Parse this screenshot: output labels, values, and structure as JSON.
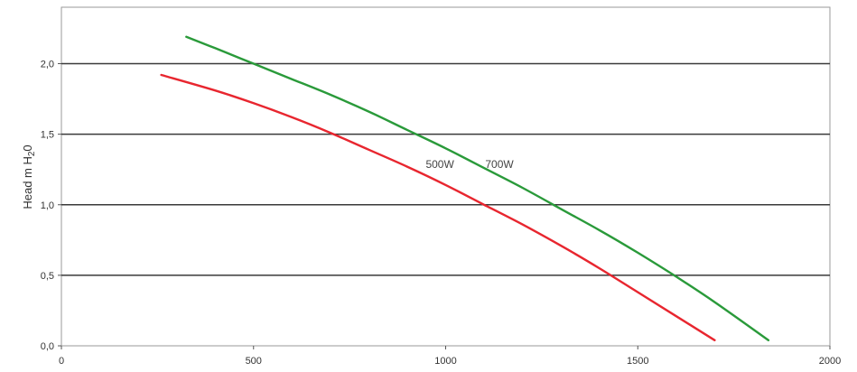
{
  "chart_data": {
    "type": "line",
    "title": "",
    "xlabel": "",
    "ylabel": "Head m H",
    "ylabel_sub": "2",
    "ylabel_tail": "0",
    "xlim": [
      0,
      2000
    ],
    "ylim": [
      0,
      2.4
    ],
    "x_ticks": [
      0,
      500,
      1000,
      1500,
      2000
    ],
    "x_tick_labels": [
      "0",
      "500",
      "1000",
      "1500",
      "2000"
    ],
    "y_ticks": [
      0,
      0.5,
      1.0,
      1.5,
      2.0
    ],
    "y_tick_labels": [
      "0,0",
      "0,5",
      "1,0",
      "1,5",
      "2,0"
    ],
    "grid": "horizontal",
    "legend": "none",
    "series": [
      {
        "name": "500W",
        "color": "#e8262f",
        "label_at": {
          "x": 985,
          "y": 1.26
        },
        "x": [
          260,
          400,
          500,
          600,
          700,
          800,
          900,
          1000,
          1100,
          1200,
          1300,
          1400,
          1500,
          1600,
          1700
        ],
        "y": [
          1.92,
          1.81,
          1.72,
          1.62,
          1.51,
          1.39,
          1.27,
          1.14,
          1.0,
          0.86,
          0.71,
          0.55,
          0.38,
          0.21,
          0.04
        ]
      },
      {
        "name": "700W",
        "color": "#2a9a3a",
        "label_at": {
          "x": 1140,
          "y": 1.26
        },
        "x": [
          325,
          400,
          500,
          600,
          700,
          800,
          900,
          1000,
          1100,
          1200,
          1300,
          1400,
          1500,
          1600,
          1700,
          1840
        ],
        "y": [
          2.19,
          2.11,
          2.0,
          1.89,
          1.78,
          1.66,
          1.53,
          1.4,
          1.26,
          1.12,
          0.97,
          0.82,
          0.66,
          0.49,
          0.31,
          0.04
        ]
      }
    ]
  }
}
